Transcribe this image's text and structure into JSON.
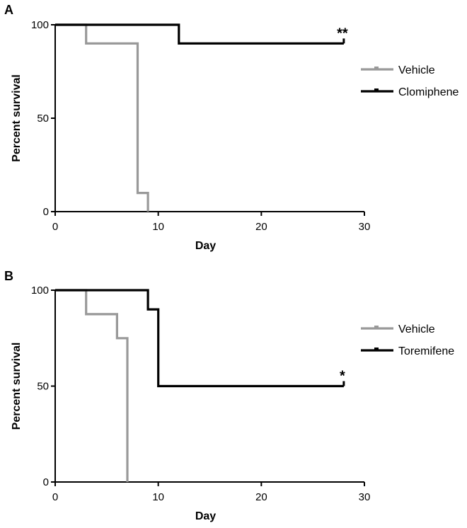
{
  "chart_data": [
    {
      "type": "line",
      "panel_label": "A",
      "xlabel": "Day",
      "ylabel": "Percent survival",
      "xlim": [
        0,
        30
      ],
      "ylim": [
        0,
        100
      ],
      "xticks": [
        0,
        10,
        20,
        30
      ],
      "yticks": [
        0,
        50,
        100
      ],
      "grid": false,
      "legend_position": "right",
      "series": [
        {
          "name": "Vehicle",
          "color": "#999999",
          "step": true,
          "points": [
            [
              0,
              100
            ],
            [
              3,
              100
            ],
            [
              3,
              90
            ],
            [
              8,
              90
            ],
            [
              8,
              10
            ],
            [
              9,
              10
            ],
            [
              9,
              0
            ]
          ]
        },
        {
          "name": "Clomiphene",
          "color": "#000000",
          "step": true,
          "points": [
            [
              0,
              100
            ],
            [
              12,
              100
            ],
            [
              12,
              90
            ],
            [
              28,
              90
            ]
          ],
          "end_tick": true,
          "annotation": "**"
        }
      ]
    },
    {
      "type": "line",
      "panel_label": "B",
      "xlabel": "Day",
      "ylabel": "Percent survival",
      "xlim": [
        0,
        30
      ],
      "ylim": [
        0,
        100
      ],
      "xticks": [
        0,
        10,
        20,
        30
      ],
      "yticks": [
        0,
        50,
        100
      ],
      "grid": false,
      "legend_position": "right",
      "series": [
        {
          "name": "Vehicle",
          "color": "#999999",
          "step": true,
          "points": [
            [
              0,
              100
            ],
            [
              3,
              100
            ],
            [
              3,
              87.5
            ],
            [
              6,
              87.5
            ],
            [
              6,
              75
            ],
            [
              7,
              75
            ],
            [
              7,
              0
            ]
          ]
        },
        {
          "name": "Toremifene",
          "color": "#000000",
          "step": true,
          "points": [
            [
              0,
              100
            ],
            [
              9,
              100
            ],
            [
              9,
              90
            ],
            [
              10,
              90
            ],
            [
              10,
              50
            ],
            [
              28,
              50
            ]
          ],
          "end_tick": true,
          "annotation": "*"
        }
      ]
    }
  ]
}
